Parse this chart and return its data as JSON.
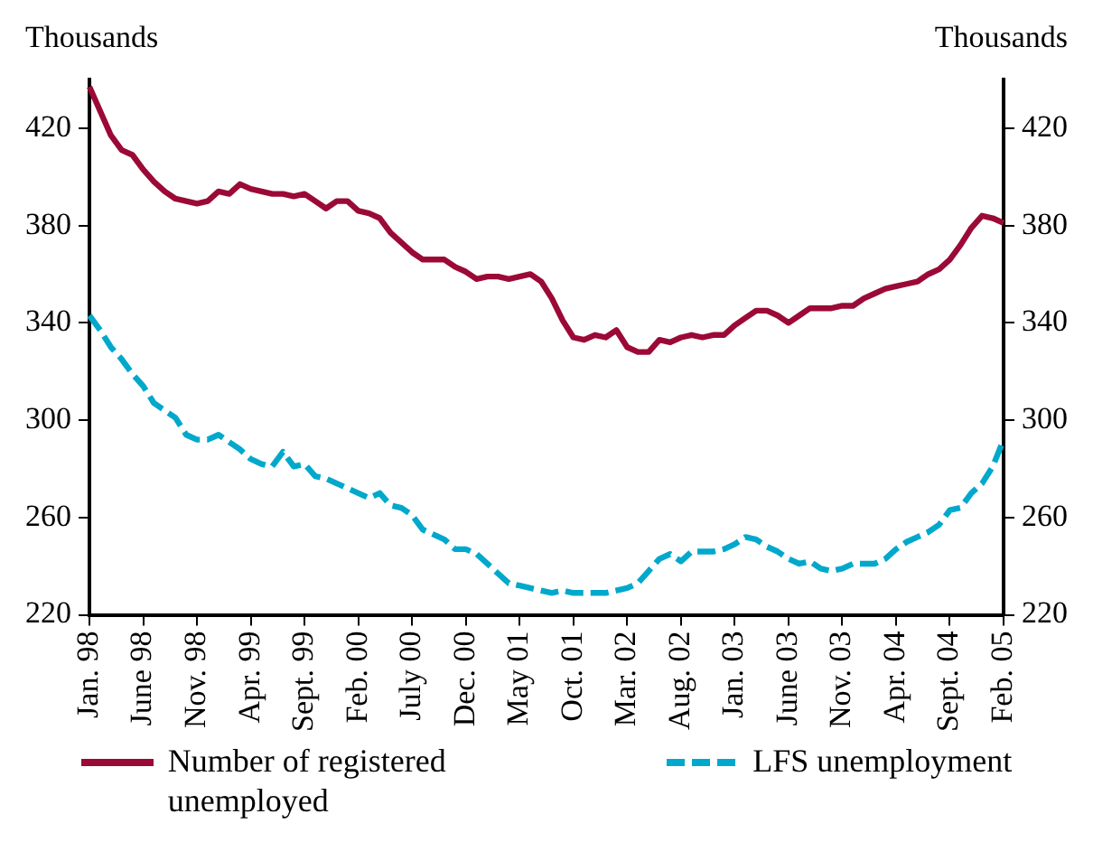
{
  "chart_data": {
    "type": "line",
    "ylabel": "Thousands",
    "y2label": "Thousands",
    "categories": [
      "Jan. 98",
      null,
      null,
      null,
      null,
      "June 98",
      null,
      null,
      null,
      null,
      "Nov. 98",
      null,
      null,
      null,
      null,
      "Apr. 99",
      null,
      null,
      null,
      null,
      "Sept. 99",
      null,
      null,
      null,
      null,
      "Feb. 00",
      null,
      null,
      null,
      null,
      "July 00",
      null,
      null,
      null,
      null,
      "Dec. 00",
      null,
      null,
      null,
      null,
      "May 01",
      null,
      null,
      null,
      null,
      "Oct. 01",
      null,
      null,
      null,
      null,
      "Mar. 02",
      null,
      null,
      null,
      null,
      "Aug. 02",
      null,
      null,
      null,
      null,
      "Jan. 03",
      null,
      null,
      null,
      null,
      "June 03",
      null,
      null,
      null,
      null,
      "Nov. 03",
      null,
      null,
      null,
      null,
      "Apr. 04",
      null,
      null,
      null,
      null,
      "Sept. 04",
      null,
      null,
      null,
      null,
      "Feb. 05"
    ],
    "series": [
      {
        "name": "Number of registered unemployed",
        "color": "#9b0a37",
        "line_style": "solid",
        "values": [
          437,
          427,
          417,
          411,
          409,
          403,
          398,
          394,
          391,
          390,
          389,
          390,
          394,
          393,
          397,
          395,
          394,
          393,
          393,
          392,
          393,
          390,
          387,
          390,
          390,
          386,
          385,
          383,
          377,
          373,
          369,
          366,
          366,
          366,
          363,
          361,
          358,
          359,
          359,
          358,
          359,
          360,
          357,
          350,
          341,
          334,
          333,
          335,
          334,
          337,
          330,
          328,
          328,
          333,
          332,
          334,
          335,
          334,
          335,
          335,
          339,
          342,
          345,
          345,
          343,
          340,
          343,
          346,
          346,
          346,
          347,
          347,
          350,
          352,
          354,
          355,
          356,
          357,
          360,
          362,
          366,
          372,
          379,
          384,
          383,
          381
        ]
      },
      {
        "name": "LFS unemployment",
        "color": "#00a8cc",
        "line_style": "dashed",
        "values": [
          343,
          337,
          330,
          325,
          319,
          314,
          307,
          304,
          301,
          294,
          292,
          292,
          294,
          291,
          288,
          284,
          282,
          281,
          287,
          281,
          282,
          277,
          276,
          274,
          272,
          270,
          268,
          270,
          265,
          264,
          261,
          255,
          253,
          251,
          247,
          247,
          245,
          241,
          237,
          233,
          232,
          231,
          230,
          229,
          230,
          229,
          229,
          229,
          229,
          230,
          231,
          233,
          238,
          243,
          245,
          242,
          246,
          246,
          246,
          247,
          249,
          252,
          251,
          248,
          246,
          243,
          241,
          242,
          239,
          238,
          239,
          241,
          241,
          241,
          243,
          247,
          250,
          252,
          254,
          257,
          263,
          264,
          270,
          274,
          281,
          292
        ]
      }
    ],
    "ylim": [
      220,
      440
    ],
    "yticks": [
      220,
      260,
      300,
      340,
      380,
      420
    ],
    "y2lim": [
      220,
      440
    ],
    "y2ticks": [
      220,
      260,
      300,
      340,
      380,
      420
    ],
    "grid": false,
    "legend": "bottom",
    "marker": "none"
  }
}
